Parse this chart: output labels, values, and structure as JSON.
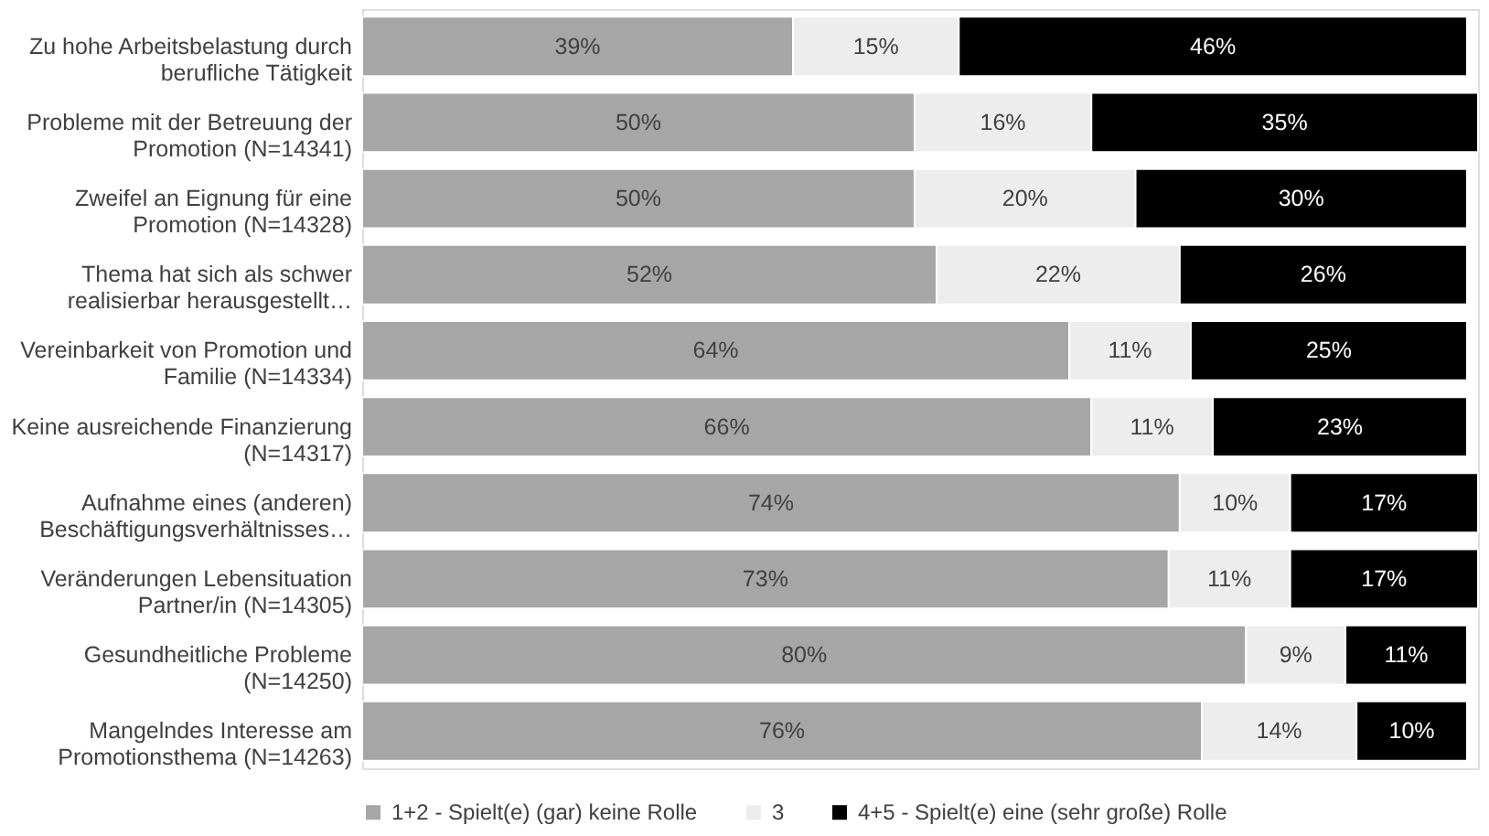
{
  "chart_data": {
    "type": "bar",
    "orientation": "horizontal",
    "stacked": true,
    "tick_labels": "y",
    "legend": "bottom",
    "categories": [
      "Zu hohe Arbeitsbelastung durch berufliche Tätigkeit",
      "Probleme mit der Betreuung der Promotion (N=14341)",
      "Zweifel an Eignung für eine Promotion (N=14328)",
      "Thema hat sich als schwer realisierbar herausgestellt…",
      "Vereinbarkeit von Promotion und Familie (N=14334)",
      "Keine ausreichende Finanzierung (N=14317)",
      "Aufnahme eines (anderen) Beschäftigungsverhältnisses…",
      "Veränderungen Lebensituation Partner/in (N=14305)",
      "Gesundheitliche Probleme (N=14250)",
      "Mangelndes Interesse am Promotionsthema (N=14263)"
    ],
    "series": [
      {
        "name": "1+2 - Spielt(e) (gar) keine Rolle",
        "color": "#a6a6a6",
        "values": [
          39,
          50,
          50,
          52,
          64,
          66,
          74,
          73,
          80,
          76
        ],
        "value_labels": [
          "39%",
          "50%",
          "50%",
          "52%",
          "64%",
          "66%",
          "74%",
          "73%",
          "80%",
          "76%"
        ]
      },
      {
        "name": "3",
        "color": "#ededed",
        "values": [
          15,
          16,
          20,
          22,
          11,
          11,
          10,
          11,
          9,
          14
        ],
        "value_labels": [
          "15%",
          "16%",
          "20%",
          "22%",
          "11%",
          "11%",
          "10%",
          "11%",
          "9%",
          "14%"
        ]
      },
      {
        "name": "4+5 - Spielt(e) eine (sehr große) Rolle",
        "color": "#000000",
        "values": [
          46,
          35,
          30,
          26,
          25,
          23,
          17,
          17,
          11,
          10
        ],
        "value_labels": [
          "46%",
          "35%",
          "30%",
          "26%",
          "25%",
          "23%",
          "17%",
          "17%",
          "11%",
          "10%"
        ]
      }
    ]
  }
}
